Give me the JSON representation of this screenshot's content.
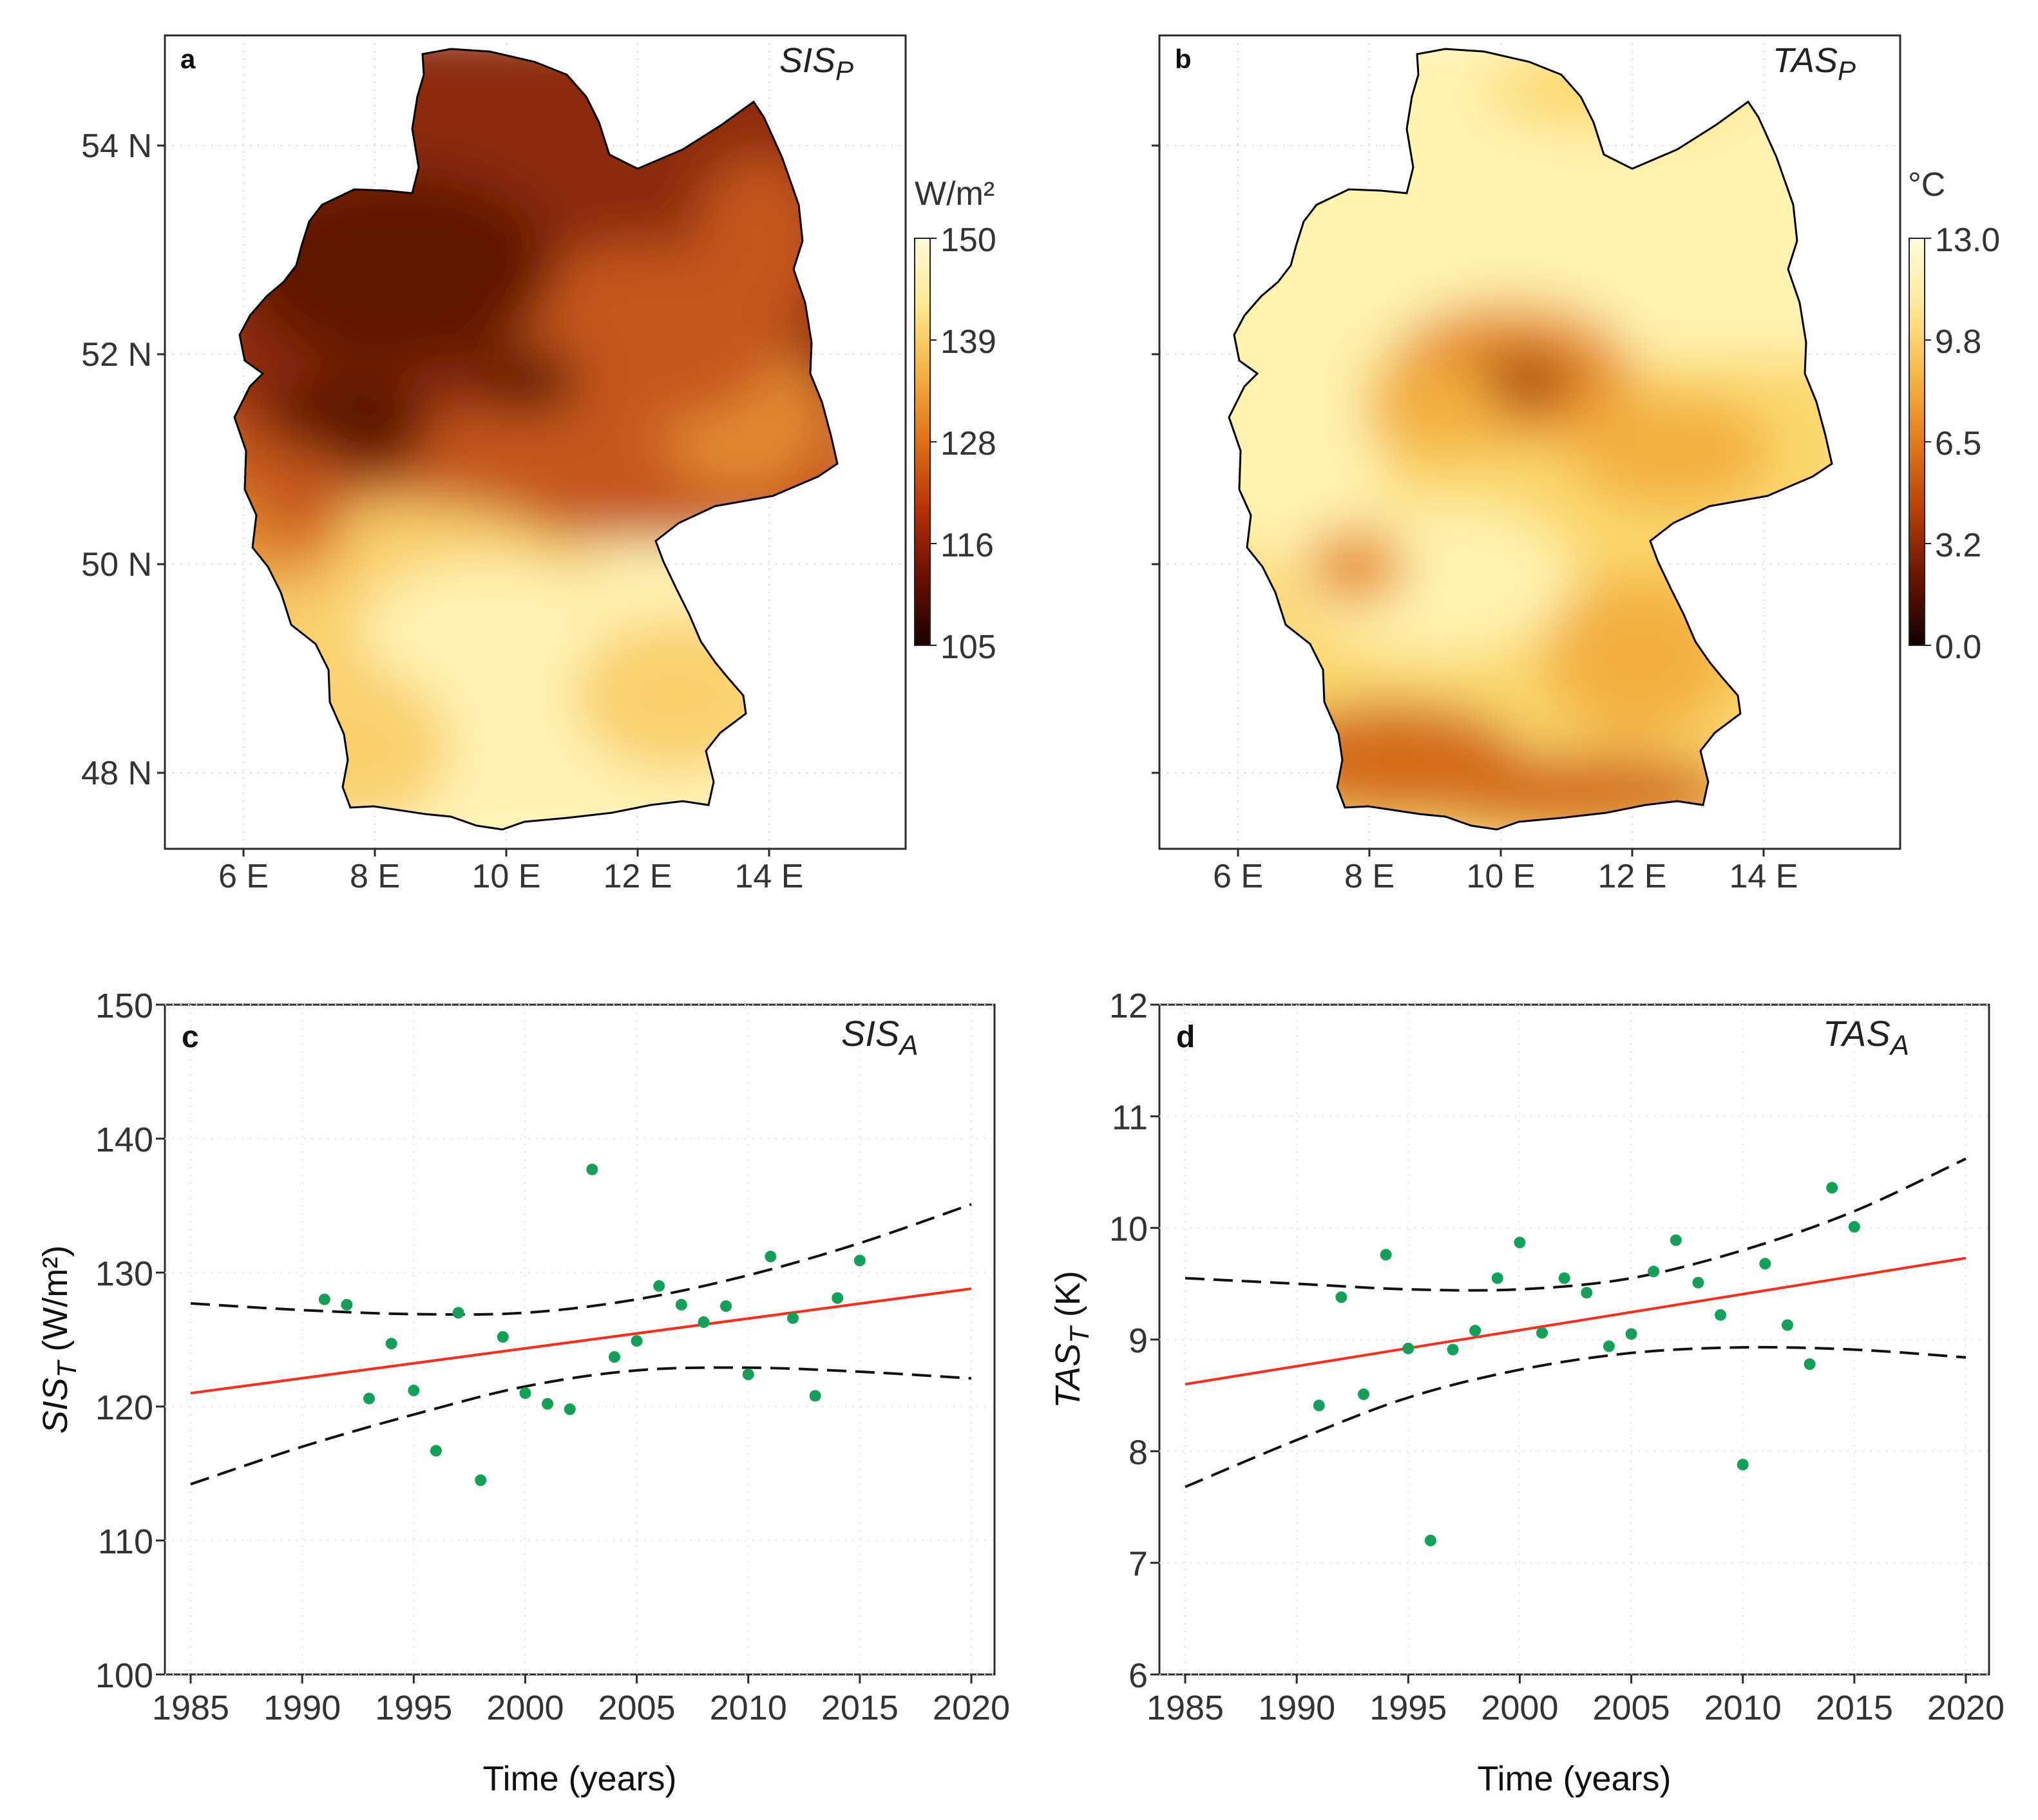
{
  "figure": {
    "colors": {
      "background": "#ffffff",
      "frame": "#2b2b2b",
      "grid": "#e2e2e2",
      "points": "#14a058",
      "trend_line": "#ff2a1a",
      "confidence_band": "#111111",
      "germany_outline": "#000000"
    }
  },
  "panels": {
    "a": {
      "letter": "a",
      "title_main": "SIS",
      "title_sub": "P",
      "colorbar_unit": "W/m²",
      "colorbar_ticks": [
        "150",
        "139",
        "128",
        "116",
        "105"
      ],
      "colorbar_colors": [
        "#fffbd8",
        "#ffe890",
        "#f5b040",
        "#e07018",
        "#b83008",
        "#6a0f02",
        "#1a0000"
      ],
      "fill_colors": [
        "#fff3b4",
        "#f9d06c",
        "#e38a30",
        "#c5561c",
        "#8c2a0c",
        "#5a1204"
      ],
      "y_ticks": [
        "54 N",
        "52 N",
        "50 N",
        "48 N"
      ],
      "x_ticks": [
        "6 E",
        "8 E",
        "10 E",
        "12 E",
        "14 E"
      ]
    },
    "b": {
      "letter": "b",
      "title_main": "TAS",
      "title_sub": "P",
      "colorbar_unit": "°C",
      "colorbar_ticks": [
        "13.0",
        "9.8",
        "6.5",
        "3.2",
        "0.0"
      ],
      "colorbar_colors": [
        "#fffde0",
        "#ffe898",
        "#f7b848",
        "#e37a1c",
        "#b8400a",
        "#6a1402",
        "#0f0000"
      ],
      "fill_colors": [
        "#fff3b0",
        "#fbd86c",
        "#f3b040",
        "#e8902a",
        "#d36a18",
        "#a03a0a"
      ],
      "y_ticks": [
        "54 N",
        "52 N",
        "50 N",
        "48 N"
      ],
      "x_ticks": [
        "6 E",
        "8 E",
        "10 E",
        "12 E",
        "14 E"
      ]
    }
  },
  "chart_data": [
    {
      "panel": "c",
      "type": "scatter",
      "title": "SIS",
      "title_sub": "A",
      "letter": "c",
      "xlabel": "Time (years)",
      "ylabel_main": "SIS",
      "ylabel_sub": "T",
      "ylabel_unit": " (W/m²)",
      "xlim": [
        1985,
        2020
      ],
      "ylim": [
        100,
        150
      ],
      "x_ticks": [
        1985,
        1990,
        1995,
        2000,
        2005,
        2010,
        2015,
        2020
      ],
      "y_ticks": [
        100,
        110,
        120,
        130,
        140,
        150
      ],
      "x": [
        1991,
        1992,
        1993,
        1994,
        1995,
        1996,
        1997,
        1998,
        1999,
        2000,
        2001,
        2002,
        2003,
        2004,
        2005,
        2006,
        2007,
        2008,
        2009,
        2010,
        2011,
        2012,
        2013,
        2014,
        2015
      ],
      "y": [
        128.0,
        127.6,
        120.6,
        124.7,
        121.2,
        116.7,
        127.0,
        114.5,
        125.2,
        121.0,
        120.2,
        119.8,
        137.7,
        123.7,
        124.9,
        129.0,
        127.6,
        126.3,
        127.5,
        122.4,
        131.2,
        126.6,
        120.8,
        128.1,
        130.9
      ],
      "trend": {
        "x": [
          1985,
          2020
        ],
        "y": [
          121.0,
          128.8
        ]
      },
      "upper_band": {
        "x": [
          1985,
          1990,
          1995,
          2000,
          2005,
          2010,
          2015,
          2020
        ],
        "y": [
          127.7,
          127.2,
          126.9,
          127.0,
          128.0,
          129.8,
          132.2,
          135.1
        ]
      },
      "lower_band": {
        "x": [
          1985,
          1990,
          1995,
          2000,
          2005,
          2010,
          2015,
          2020
        ],
        "y": [
          114.2,
          117.0,
          119.4,
          121.5,
          122.7,
          122.9,
          122.6,
          122.1
        ]
      }
    },
    {
      "panel": "d",
      "type": "scatter",
      "title": "TAS",
      "title_sub": "A",
      "letter": "d",
      "xlabel": "Time (years)",
      "ylabel_main": "TAS",
      "ylabel_sub": "T",
      "ylabel_unit": " (K)",
      "xlim": [
        1985,
        2020
      ],
      "ylim": [
        6,
        12
      ],
      "x_ticks": [
        1985,
        1990,
        1995,
        2000,
        2005,
        2010,
        2015,
        2020
      ],
      "y_ticks": [
        6,
        7,
        8,
        9,
        10,
        11,
        12
      ],
      "x": [
        1991,
        1992,
        1993,
        1994,
        1995,
        1996,
        1997,
        1998,
        1999,
        2000,
        2001,
        2002,
        2003,
        2004,
        2005,
        2006,
        2007,
        2008,
        2009,
        2010,
        2011,
        2012,
        2013,
        2014,
        2015
      ],
      "y": [
        8.41,
        9.38,
        8.51,
        9.76,
        8.92,
        7.2,
        8.91,
        9.08,
        9.55,
        9.87,
        9.06,
        9.55,
        9.42,
        8.94,
        9.05,
        9.61,
        9.89,
        9.51,
        9.22,
        7.88,
        9.68,
        9.13,
        8.78,
        10.36,
        10.01
      ],
      "trend": {
        "x": [
          1985,
          2020
        ],
        "y": [
          8.6,
          9.73
        ]
      },
      "upper_band": {
        "x": [
          1985,
          1990,
          1995,
          2000,
          2005,
          2010,
          2015,
          2020
        ],
        "y": [
          9.55,
          9.5,
          9.45,
          9.45,
          9.55,
          9.8,
          10.15,
          10.62
        ]
      },
      "lower_band": {
        "x": [
          1985,
          1990,
          1995,
          2000,
          2005,
          2010,
          2015,
          2020
        ],
        "y": [
          7.68,
          8.1,
          8.48,
          8.73,
          8.88,
          8.93,
          8.91,
          8.84
        ]
      }
    }
  ]
}
